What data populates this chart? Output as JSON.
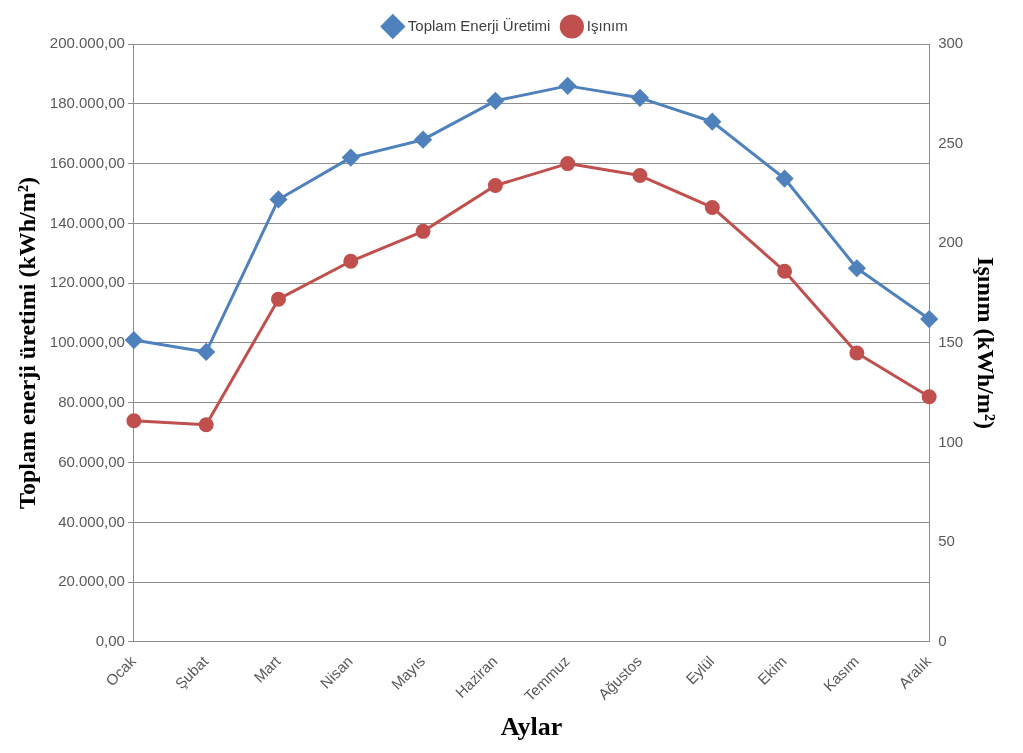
{
  "chart_data": {
    "type": "line",
    "xlabel": "Aylar",
    "ylabel": "Toplam enerji üretimi (kWh/m²)",
    "y2label": "Işınım (kWh/m²)",
    "categories": [
      "Ocak",
      "Şubat",
      "Mart",
      "Nisan",
      "Mayıs",
      "Haziran",
      "Temmuz",
      "Ağustos",
      "Eylül",
      "Ekim",
      "Kasım",
      "Aralık"
    ],
    "series": [
      {
        "name": "Toplam Enerji Üretimi",
        "color": "#4f81bd",
        "marker": "diamond",
        "values": [
          101000,
          97000,
          148000,
          162000,
          168000,
          181000,
          186000,
          182000,
          174000,
          155000,
          125000,
          108000
        ]
      },
      {
        "name": "Işınım",
        "color": "#c0504d",
        "marker": "circle",
        "axis": "y2",
        "values": [
          111,
          109,
          172,
          191,
          206,
          229,
          240,
          234,
          218,
          186,
          145,
          123
        ]
      }
    ],
    "ylim": [
      0,
      200000
    ],
    "yticks": [
      {
        "value": 0,
        "label": "0,00"
      },
      {
        "value": 20000,
        "label": "20.000,00"
      },
      {
        "value": 40000,
        "label": "40.000,00"
      },
      {
        "value": 60000,
        "label": "60.000,00"
      },
      {
        "value": 80000,
        "label": "80.000,00"
      },
      {
        "value": 100000,
        "label": "100.000,00"
      },
      {
        "value": 120000,
        "label": "120.000,00"
      },
      {
        "value": 140000,
        "label": "140.000,00"
      },
      {
        "value": 160000,
        "label": "160.000,00"
      },
      {
        "value": 180000,
        "label": "180.000,00"
      },
      {
        "value": 200000,
        "label": "200.000,00"
      }
    ],
    "y2lim": [
      0,
      300
    ],
    "y2ticks": [
      0,
      50,
      100,
      150,
      200,
      250,
      300
    ],
    "grid": "y",
    "legend": "top",
    "line_style": "solid"
  }
}
